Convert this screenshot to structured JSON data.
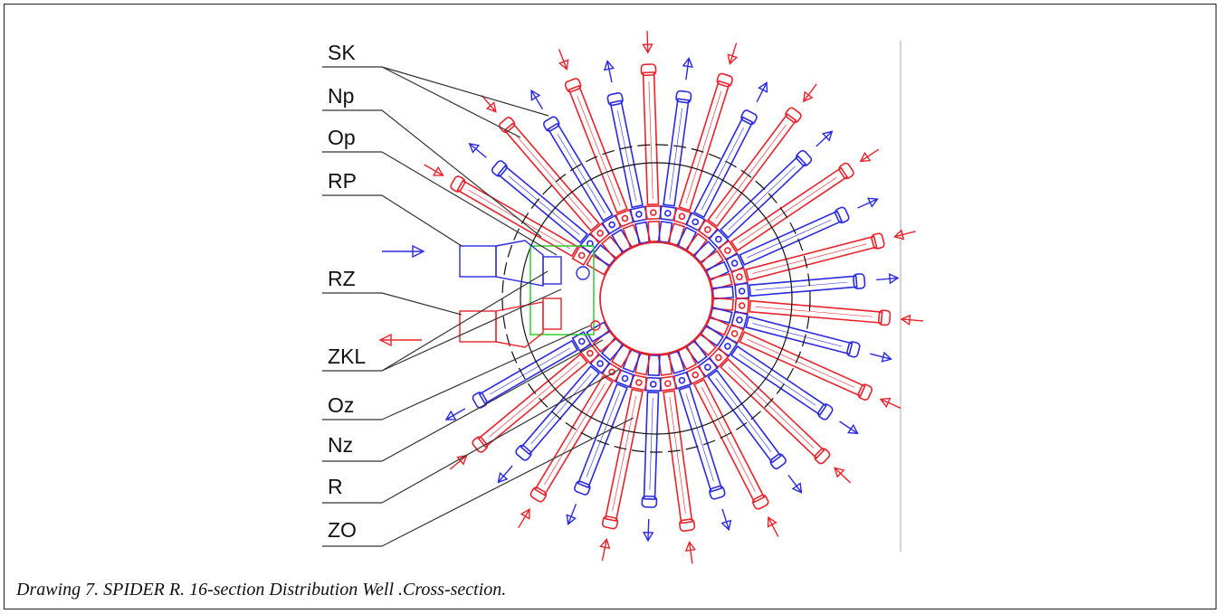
{
  "labels": [
    "SK",
    "Np",
    "Op",
    "RP",
    "RZ",
    "ZKL",
    "Oz",
    "Nz",
    "R",
    "ZO"
  ],
  "caption": "Drawing 7. SPIDER R. 16-section Distribution Well .Cross-section.",
  "colors": {
    "supply": "#e8232b",
    "return": "#2a2ae0",
    "frame": "#222222",
    "leader": "#333333",
    "accent": "#22cc22"
  },
  "sections": 16
}
